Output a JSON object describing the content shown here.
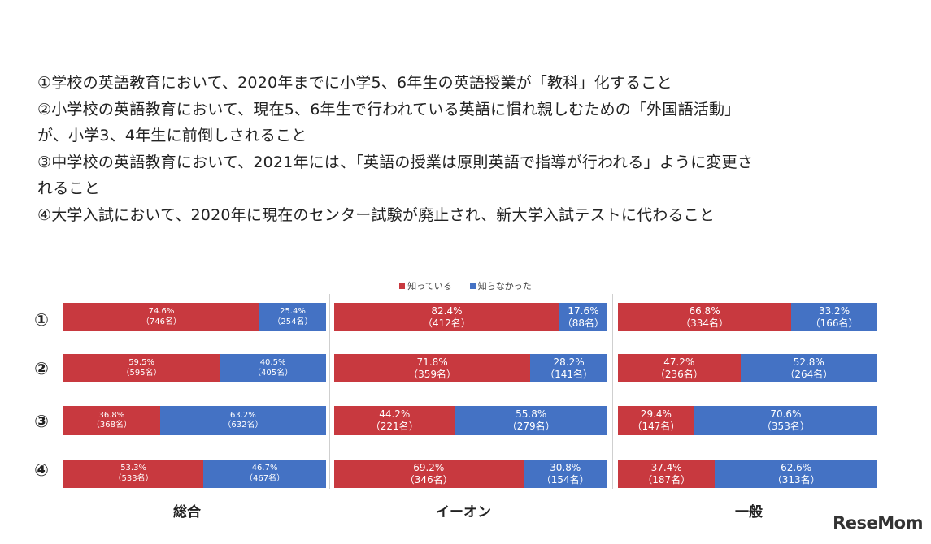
{
  "questions": [
    "①学校の英語教育において、2020年までに小学5、6年生の英語授業が「教科」化すること",
    "②小学校の英語教育において、現在5、6年生で行われている英語に慣れ親しむための「外国語活動」",
    "が、小学3、4年生に前倒しされること",
    "③中学校の英語教育において、2021年には、「英語の授業は原則英語で指導が行われる」ように変更さ",
    "れること",
    "④大学入試において、2020年に現在のセンター試験が廃止され、新大学入試テストに代わること"
  ],
  "logo": "ReseMom",
  "colors": {
    "knew": "#c8393f",
    "didnt": "#4472c4"
  },
  "chart_data": {
    "type": "bar",
    "orientation": "horizontal-stacked-100",
    "legend": [
      "知っている",
      "知らなかった"
    ],
    "legend_position": "top-center",
    "categories": [
      "①",
      "②",
      "③",
      "④"
    ],
    "panels": [
      {
        "title": "総合",
        "rows": [
          {
            "knew_pct": "74.6%",
            "knew_n": "（746名）",
            "knew": 74.6,
            "didnt_pct": "25.4%",
            "didnt_n": "（254名）",
            "didnt": 25.4
          },
          {
            "knew_pct": "59.5%",
            "knew_n": "（595名）",
            "knew": 59.5,
            "didnt_pct": "40.5%",
            "didnt_n": "（405名）",
            "didnt": 40.5
          },
          {
            "knew_pct": "36.8%",
            "knew_n": "（368名）",
            "knew": 36.8,
            "didnt_pct": "63.2%",
            "didnt_n": "（632名）",
            "didnt": 63.2
          },
          {
            "knew_pct": "53.3%",
            "knew_n": "（533名）",
            "knew": 53.3,
            "didnt_pct": "46.7%",
            "didnt_n": "（467名）",
            "didnt": 46.7
          }
        ]
      },
      {
        "title": "イーオン",
        "rows": [
          {
            "knew_pct": "82.4%",
            "knew_n": "（412名）",
            "knew": 82.4,
            "didnt_pct": "17.6%",
            "didnt_n": "（88名）",
            "didnt": 17.6
          },
          {
            "knew_pct": "71.8%",
            "knew_n": "（359名）",
            "knew": 71.8,
            "didnt_pct": "28.2%",
            "didnt_n": "（141名）",
            "didnt": 28.2
          },
          {
            "knew_pct": "44.2%",
            "knew_n": "（221名）",
            "knew": 44.2,
            "didnt_pct": "55.8%",
            "didnt_n": "（279名）",
            "didnt": 55.8
          },
          {
            "knew_pct": "69.2%",
            "knew_n": "（346名）",
            "knew": 69.2,
            "didnt_pct": "30.8%",
            "didnt_n": "（154名）",
            "didnt": 30.8
          }
        ]
      },
      {
        "title": "一般",
        "rows": [
          {
            "knew_pct": "66.8%",
            "knew_n": "（334名）",
            "knew": 66.8,
            "didnt_pct": "33.2%",
            "didnt_n": "（166名）",
            "didnt": 33.2
          },
          {
            "knew_pct": "47.2%",
            "knew_n": "（236名）",
            "knew": 47.2,
            "didnt_pct": "52.8%",
            "didnt_n": "（264名）",
            "didnt": 52.8
          },
          {
            "knew_pct": "29.4%",
            "knew_n": "（147名）",
            "knew": 29.4,
            "didnt_pct": "70.6%",
            "didnt_n": "（353名）",
            "didnt": 70.6
          },
          {
            "knew_pct": "37.4%",
            "knew_n": "（187名）",
            "knew": 37.4,
            "didnt_pct": "62.6%",
            "didnt_n": "（313名）",
            "didnt": 62.6
          }
        ]
      }
    ]
  }
}
